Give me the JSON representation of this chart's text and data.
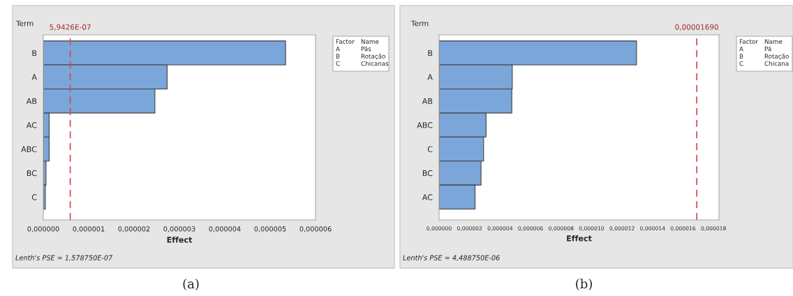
{
  "chart_data": [
    {
      "type": "bar",
      "orientation": "horizontal",
      "categories": [
        "B",
        "A",
        "AB",
        "AC",
        "ABC",
        "BC",
        "C"
      ],
      "values": [
        5.34e-06,
        2.73e-06,
        2.46e-06,
        1.3e-07,
        1.3e-07,
        6e-08,
        4.5e-08
      ],
      "color": "#7ba6d9",
      "xlabel": "Effect",
      "ylabel": "Term",
      "xlim": [
        0,
        6e-06
      ],
      "xticks": [
        {
          "value": 0,
          "label": "0,000000"
        },
        {
          "value": 1e-06,
          "label": "0,000001"
        },
        {
          "value": 2e-06,
          "label": "0,000002"
        },
        {
          "value": 3e-06,
          "label": "0,000003"
        },
        {
          "value": 4e-06,
          "label": "0,000004"
        },
        {
          "value": 5e-06,
          "label": "0,000005"
        },
        {
          "value": 6e-06,
          "label": "0,000006"
        }
      ],
      "ref_lines": [
        {
          "axis": "x",
          "value": 5.9426e-07,
          "label": "5,9426E-07",
          "color": "#d9454f",
          "line_style": "dashed"
        }
      ],
      "annotations": [
        "Factor",
        "Name",
        "A",
        "Pás",
        "B",
        "Rotação",
        "C",
        "Chicanas",
        "Lenth's PSE = 1,578750E-07",
        "(a)"
      ],
      "grid": false,
      "legend": false
    },
    {
      "type": "bar",
      "orientation": "horizontal",
      "categories": [
        "B",
        "A",
        "AB",
        "ABC",
        "C",
        "BC",
        "AC"
      ],
      "values": [
        1.295e-05,
        4.8e-06,
        4.77e-06,
        3.08e-06,
        2.92e-06,
        2.75e-06,
        2.36e-06
      ],
      "color": "#7ba6d9",
      "xlabel": "Effect",
      "ylabel": "Term",
      "xlim": [
        0,
        1.836e-05
      ],
      "xticks": [
        {
          "value": 0,
          "label": "0,000000"
        },
        {
          "value": 2e-06,
          "label": "0,000002"
        },
        {
          "value": 4e-06,
          "label": "0,000004"
        },
        {
          "value": 6e-06,
          "label": "0,000006"
        },
        {
          "value": 8e-06,
          "label": "0,000008"
        },
        {
          "value": 1e-05,
          "label": "0,000010"
        },
        {
          "value": 1.2e-05,
          "label": "0,000012"
        },
        {
          "value": 1.4e-05,
          "label": "0,000014"
        },
        {
          "value": 1.6e-05,
          "label": "0,000016"
        },
        {
          "value": 1.8e-05,
          "label": "0,000018"
        }
      ],
      "ref_lines": [
        {
          "axis": "x",
          "value": 1.69e-05,
          "label": "0,00001690",
          "color": "#d9454f",
          "line_style": "dashed"
        }
      ],
      "annotations": [
        "Factor",
        "Name",
        "A",
        "Pá",
        "B",
        "Rotação",
        "C",
        "Chicana",
        "Lenth's PSE = 4,488750E-06",
        "(b)"
      ],
      "grid": false,
      "legend": false
    }
  ]
}
